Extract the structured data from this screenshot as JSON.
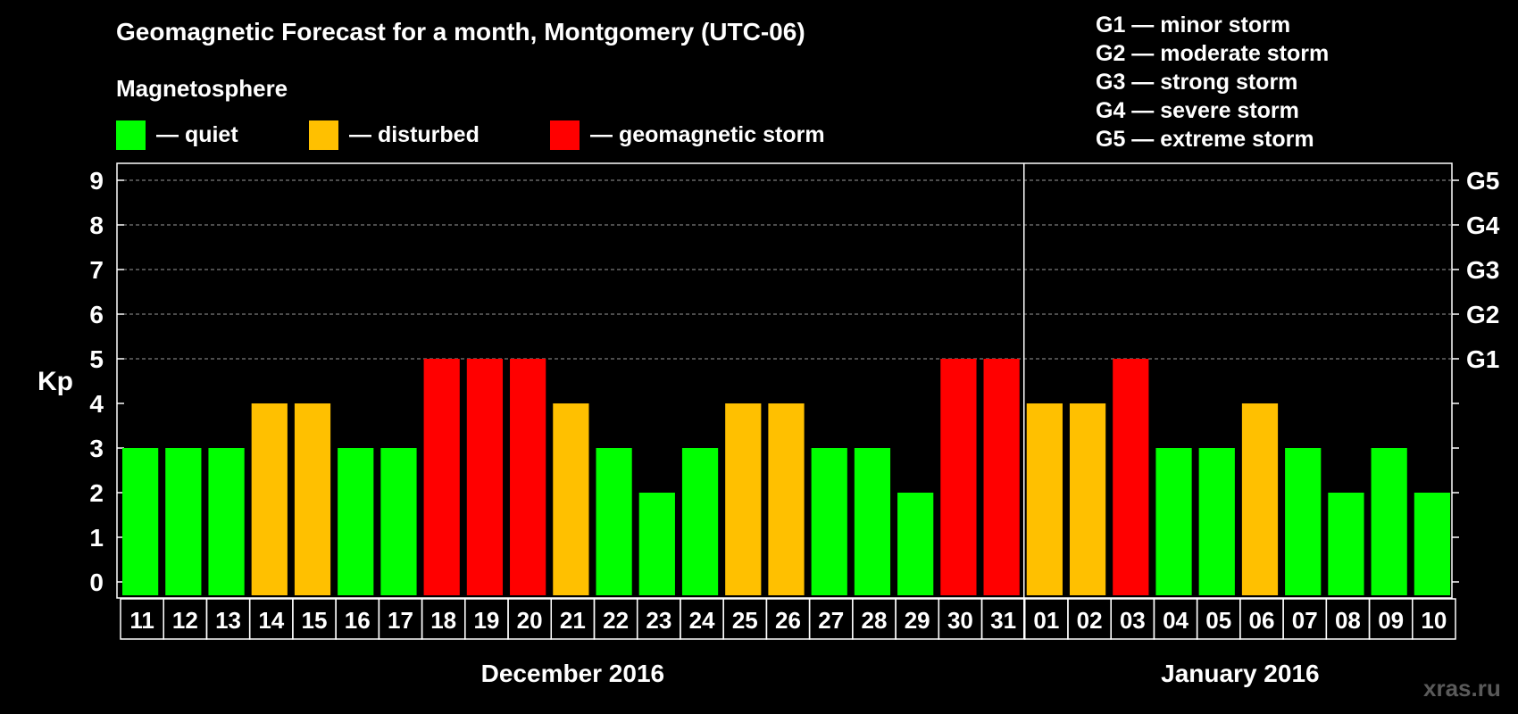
{
  "chart_data": {
    "type": "bar",
    "title": "Geomagnetic Forecast for a month, Montgomery (UTC-06)",
    "subtitle": "Magnetosphere",
    "ylabel": "Kp",
    "ylim": [
      0,
      9
    ],
    "yticks": [
      "0",
      "1",
      "2",
      "3",
      "4",
      "5",
      "6",
      "7",
      "8",
      "9"
    ],
    "right_ticks": [
      {
        "kp": 5,
        "label": "G1"
      },
      {
        "kp": 6,
        "label": "G2"
      },
      {
        "kp": 7,
        "label": "G3"
      },
      {
        "kp": 8,
        "label": "G4"
      },
      {
        "kp": 9,
        "label": "G5"
      }
    ],
    "categories": [
      "11",
      "12",
      "13",
      "14",
      "15",
      "16",
      "17",
      "18",
      "19",
      "20",
      "21",
      "22",
      "23",
      "24",
      "25",
      "26",
      "27",
      "28",
      "29",
      "30",
      "31",
      "01",
      "02",
      "03",
      "04",
      "05",
      "06",
      "07",
      "08",
      "09",
      "10"
    ],
    "values": [
      3,
      3,
      3,
      4,
      4,
      3,
      3,
      5,
      5,
      5,
      4,
      3,
      2,
      3,
      4,
      4,
      3,
      3,
      2,
      5,
      5,
      4,
      4,
      5,
      3,
      3,
      4,
      3,
      2,
      3,
      2
    ],
    "months": [
      {
        "label": "December 2016",
        "start": 0,
        "end": 20
      },
      {
        "label": "January 2016",
        "start": 21,
        "end": 30
      }
    ],
    "legend": [
      {
        "label": "— quiet",
        "color": "#00ff00"
      },
      {
        "label": "— disturbed",
        "color": "#ffc000"
      },
      {
        "label": "— geomagnetic storm",
        "color": "#ff0000"
      }
    ],
    "storm_scale": [
      "G1 — minor storm",
      "G2 — moderate storm",
      "G3 — strong storm",
      "G4 — severe storm",
      "G5 — extreme storm"
    ]
  },
  "watermark": "xras.ru"
}
